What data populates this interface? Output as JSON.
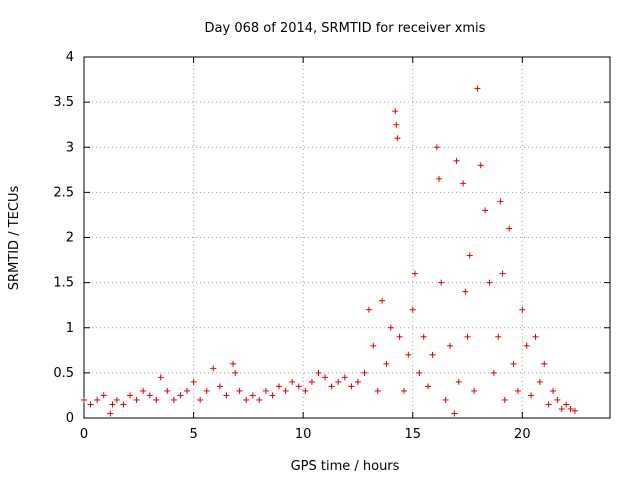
{
  "chart_data": {
    "type": "scatter",
    "title": "Day 068 of 2014, SRMTID for receiver xmis",
    "xlabel": "GPS time / hours",
    "ylabel": "SRMTID / TECUs",
    "xlim": [
      0,
      24
    ],
    "ylim": [
      0,
      4
    ],
    "x_ticks": [
      "0",
      "5",
      "10",
      "15",
      "20"
    ],
    "y_ticks": [
      "0",
      "0.5",
      "1",
      "1.5",
      "2",
      "2.5",
      "3",
      "3.5",
      "4"
    ],
    "x_tick_values": [
      0,
      5,
      10,
      15,
      20
    ],
    "y_tick_values": [
      0,
      0.5,
      1,
      1.5,
      2,
      2.5,
      3,
      3.5,
      4
    ],
    "grid": true,
    "marker": "plus",
    "series": [
      {
        "name": "SRMTID",
        "color": "#e00000",
        "x": [
          0.0,
          0.3,
          0.6,
          0.9,
          1.2,
          1.3,
          1.5,
          1.8,
          2.1,
          2.4,
          2.7,
          3.0,
          3.3,
          3.5,
          3.8,
          4.1,
          4.4,
          4.7,
          5.0,
          5.3,
          5.6,
          5.9,
          6.2,
          6.5,
          6.8,
          6.9,
          7.1,
          7.4,
          7.7,
          8.0,
          8.3,
          8.6,
          8.9,
          9.2,
          9.5,
          9.8,
          10.1,
          10.4,
          10.7,
          11.0,
          11.3,
          11.6,
          11.9,
          12.2,
          12.5,
          12.8,
          13.0,
          13.2,
          13.4,
          13.6,
          13.8,
          14.0,
          14.2,
          14.25,
          14.3,
          14.4,
          14.6,
          14.8,
          15.0,
          15.1,
          15.3,
          15.5,
          15.7,
          15.9,
          16.1,
          16.2,
          16.3,
          16.5,
          16.7,
          16.9,
          17.0,
          17.1,
          17.3,
          17.4,
          17.5,
          17.6,
          17.8,
          17.95,
          18.1,
          18.3,
          18.5,
          18.7,
          18.9,
          19.0,
          19.1,
          19.2,
          19.4,
          19.6,
          19.8,
          20.0,
          20.2,
          20.4,
          20.6,
          20.8,
          21.0,
          21.2,
          21.4,
          21.6,
          21.8,
          22.0,
          22.2,
          22.4
        ],
        "y": [
          0.2,
          0.15,
          0.2,
          0.25,
          0.05,
          0.15,
          0.2,
          0.15,
          0.25,
          0.2,
          0.3,
          0.25,
          0.2,
          0.45,
          0.3,
          0.2,
          0.25,
          0.3,
          0.4,
          0.2,
          0.3,
          0.55,
          0.35,
          0.25,
          0.6,
          0.5,
          0.3,
          0.2,
          0.25,
          0.2,
          0.3,
          0.25,
          0.35,
          0.3,
          0.4,
          0.35,
          0.3,
          0.4,
          0.5,
          0.45,
          0.35,
          0.4,
          0.45,
          0.35,
          0.4,
          0.5,
          1.2,
          0.8,
          0.3,
          1.3,
          0.6,
          1.0,
          3.4,
          3.25,
          3.1,
          0.9,
          0.3,
          0.7,
          1.2,
          1.6,
          0.5,
          0.9,
          0.35,
          0.7,
          3.0,
          2.65,
          1.5,
          0.2,
          0.8,
          0.05,
          2.85,
          0.4,
          2.6,
          1.4,
          0.9,
          1.8,
          0.3,
          3.65,
          2.8,
          2.3,
          1.5,
          0.5,
          0.9,
          2.4,
          1.6,
          0.2,
          2.1,
          0.6,
          0.3,
          1.2,
          0.8,
          0.25,
          0.9,
          0.4,
          0.6,
          0.15,
          0.3,
          0.2,
          0.1,
          0.15,
          0.1,
          0.08
        ]
      }
    ]
  }
}
